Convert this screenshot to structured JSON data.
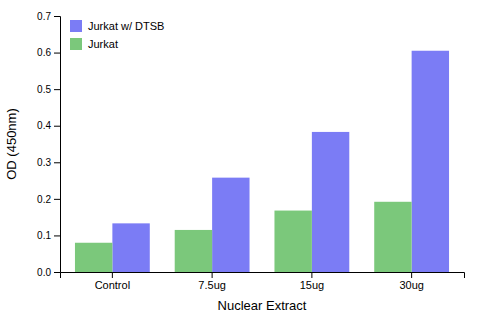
{
  "chart_data": {
    "type": "bar",
    "categories": [
      "Control",
      "7.5ug",
      "15ug",
      "30ug"
    ],
    "series": [
      {
        "name": "Jurkat w/ DTSB",
        "color": "#7b7cf5",
        "values": [
          0.133,
          0.258,
          0.383,
          0.605
        ]
      },
      {
        "name": "Jurkat",
        "color": "#7bc87b",
        "values": [
          0.08,
          0.115,
          0.168,
          0.192
        ]
      }
    ],
    "xlabel": "Nuclear Extract",
    "ylabel": "OD (450nm)",
    "ylim": [
      0,
      0.7
    ],
    "yticks": [
      {
        "value": 0.0,
        "label": "0.0"
      },
      0.1,
      0.2,
      0.3,
      0.4,
      0.5,
      0.6,
      0.7
    ],
    "grid": false,
    "legend": "upper left"
  }
}
